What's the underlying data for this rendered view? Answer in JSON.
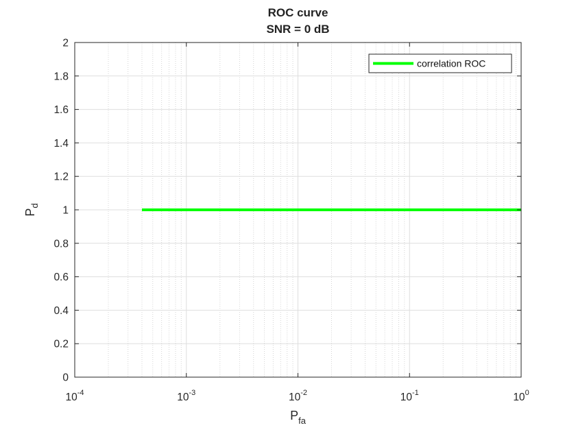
{
  "chart_data": {
    "type": "line",
    "title": "ROC curve",
    "subtitle": "SNR = 0 dB",
    "xlabel": {
      "main": "P",
      "sub": "fa"
    },
    "ylabel": {
      "main": "P",
      "sub": "d"
    },
    "x_scale": "log",
    "xlim": [
      0.0001,
      1
    ],
    "ylim": [
      0,
      2
    ],
    "x_ticks": [
      {
        "base": "10",
        "exp": "-4",
        "value": 0.0001
      },
      {
        "base": "10",
        "exp": "-3",
        "value": 0.001
      },
      {
        "base": "10",
        "exp": "-2",
        "value": 0.01
      },
      {
        "base": "10",
        "exp": "-1",
        "value": 0.1
      },
      {
        "base": "10",
        "exp": "0",
        "value": 1
      }
    ],
    "y_ticks": [
      "0",
      "0.2",
      "0.4",
      "0.6",
      "0.8",
      "1",
      "1.2",
      "1.4",
      "1.6",
      "1.8",
      "2"
    ],
    "grid": true,
    "minor_grid": true,
    "legend_position": "top-right",
    "series": [
      {
        "name": "correlation ROC",
        "color": "#00ff00",
        "x": [
          0.0004,
          1
        ],
        "y": [
          1,
          1
        ]
      }
    ]
  }
}
